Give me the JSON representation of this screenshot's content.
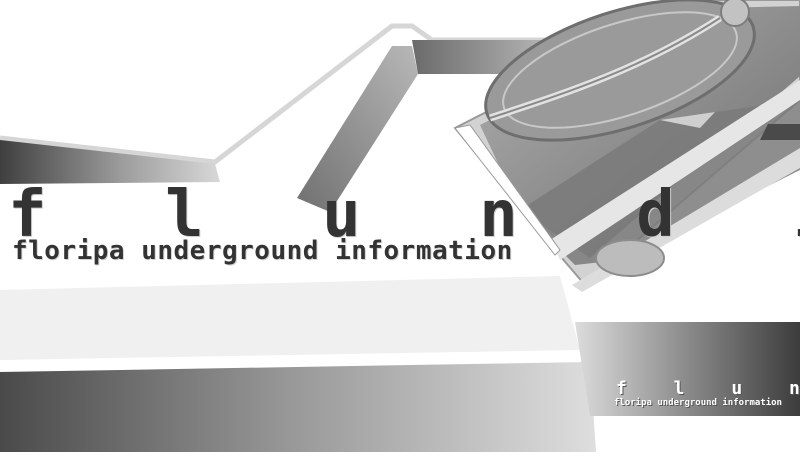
{
  "logo": {
    "title": "f l u n d i",
    "tagline": "floripa underground information"
  },
  "corner_badge": {
    "title": "f l u n d i",
    "tagline": "floripa underground information"
  },
  "graphics": {
    "turntable": "turntable-image",
    "palette": [
      "#4d4d4d",
      "#7a7a7a",
      "#a0a0a0",
      "#cfcfcf",
      "#ffffff"
    ]
  }
}
